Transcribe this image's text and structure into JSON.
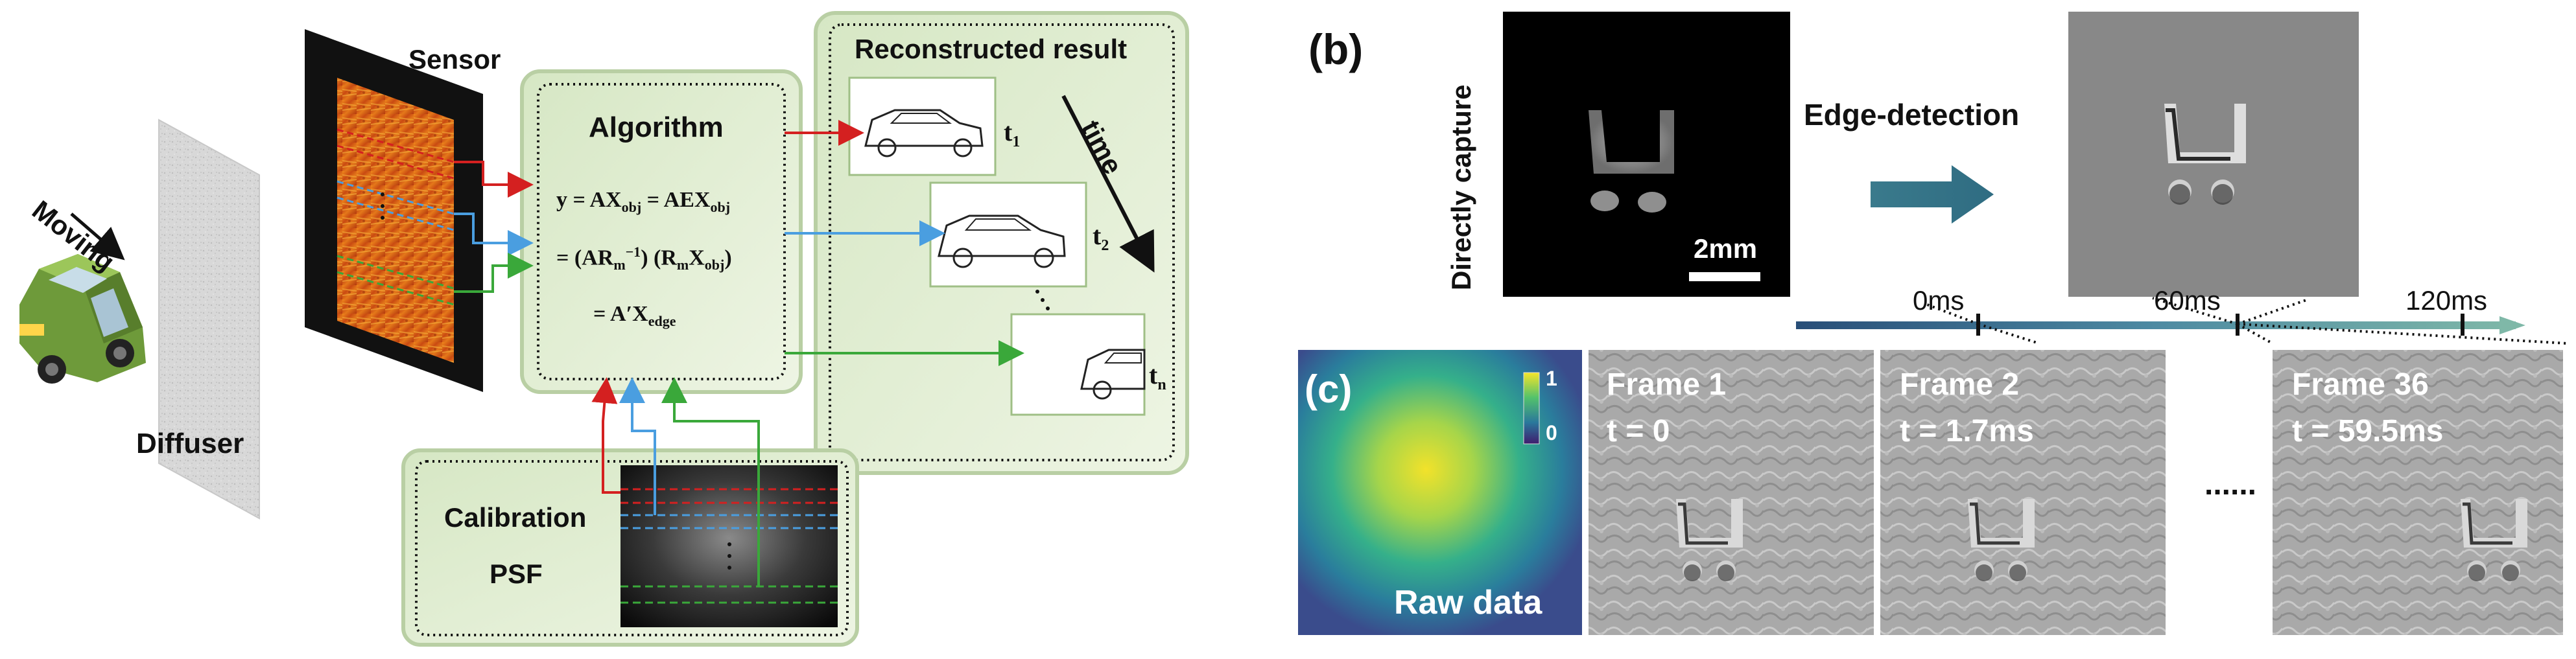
{
  "panel_a": {
    "moving_label": "Moving",
    "diffuser_label": "Diffuser",
    "sensor_label": "Sensor",
    "algorithm": {
      "title": "Algorithm",
      "eq1": "y = AX",
      "eq1_sub1": "obj",
      "eq1_b": " = AEX",
      "eq1_sub2": "obj",
      "eq2_a": "= (AR",
      "eq2_sub": "m",
      "eq2_sup": "−1",
      "eq2_b": ") (R",
      "eq2_sub2": "m",
      "eq2_c": "X",
      "eq2_sub3": "obj",
      "eq2_d": ")",
      "eq3_a": "= A",
      "eq3_prime": "′",
      "eq3_b": "X",
      "eq3_sub": "edge"
    },
    "reconstructed": {
      "title": "Reconstructed result",
      "time_label": "time",
      "t1": "t",
      "t1_sub": "1",
      "t2": "t",
      "t2_sub": "2",
      "tn": "t",
      "tn_sub": "n"
    },
    "calibration": {
      "line1": "Calibration",
      "line2": "PSF"
    }
  },
  "panel_b": {
    "tag": "(b)",
    "directly_capture": "Directly capture",
    "scale_bar": "2mm",
    "edge_detection": "Edge-detection",
    "timeline": [
      "0ms",
      "60ms",
      "120ms"
    ]
  },
  "panel_c": {
    "tag": "(c)",
    "colorbar_max": "1",
    "colorbar_min": "0",
    "raw_data": "Raw data",
    "frames": [
      {
        "label": "Frame 1",
        "time": "t = 0"
      },
      {
        "label": "Frame 2",
        "time": "t = 1.7ms"
      },
      {
        "label": "Frame 36",
        "time": "t = 59.5ms"
      }
    ],
    "ellipsis": "......"
  },
  "colors": {
    "red": "#d42020",
    "blue": "#4a9ee0",
    "green": "#3aa83a",
    "box_fill": "#dfeccf",
    "box_border": "#b9cfa4",
    "timeline": "#5a8ea4"
  }
}
